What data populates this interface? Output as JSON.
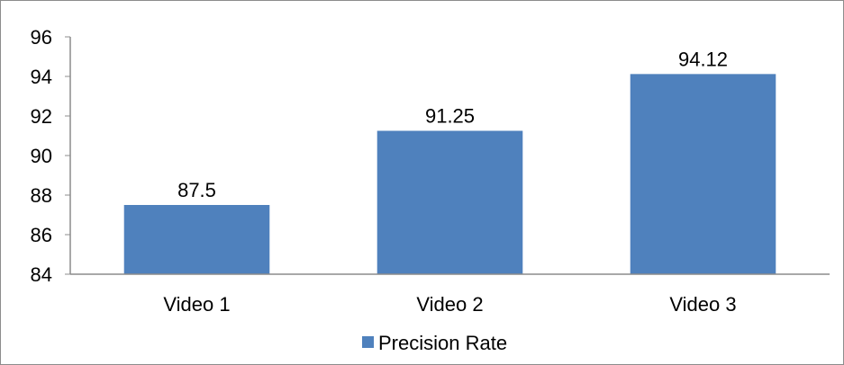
{
  "chart_data": {
    "type": "bar",
    "title": "",
    "xlabel": "",
    "ylabel": "",
    "categories": [
      "Video 1",
      "Video 2",
      "Video 3"
    ],
    "series": [
      {
        "name": "Precision Rate",
        "values": [
          87.5,
          91.25,
          94.12
        ],
        "data_labels": [
          "87.5",
          "91.25",
          "94.12"
        ],
        "color": "#4f81bd"
      }
    ],
    "ylim": [
      84,
      96
    ],
    "yticks": [
      84,
      86,
      88,
      90,
      92,
      94,
      96
    ],
    "ytick_labels": [
      "84",
      "86",
      "88",
      "90",
      "92",
      "94",
      "96"
    ],
    "grid": false,
    "legend": {
      "position": "bottom",
      "entries": [
        "Precision Rate"
      ]
    },
    "colors": {
      "axis": "#8c8c8c",
      "bar": "#4f81bd"
    }
  }
}
